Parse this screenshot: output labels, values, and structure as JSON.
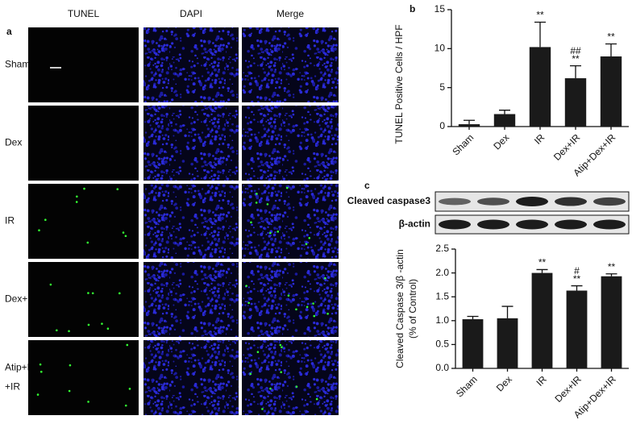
{
  "panel_a": {
    "label": "a",
    "columns": [
      "TUNEL",
      "DAPI",
      "Merge"
    ],
    "rows": [
      [
        "Sham"
      ],
      [
        "Dex"
      ],
      [
        "IR"
      ],
      [
        "Dex+IR"
      ],
      [
        "Atip+Dex",
        "+IR"
      ]
    ]
  },
  "chart_data": [
    {
      "type": "bar",
      "panel_label": "b",
      "ylabel": "TUNEL Positive Cells / HPF",
      "categories": [
        "Sham",
        "Dex",
        "IR",
        "Dex+IR",
        "Atip+Dex+IR"
      ],
      "values": [
        0.3,
        1.6,
        10.2,
        6.2,
        9.0
      ],
      "errors": [
        0.5,
        0.5,
        3.2,
        1.6,
        1.6
      ],
      "markers": [
        null,
        null,
        [
          "**"
        ],
        [
          "##",
          "**"
        ],
        [
          "**"
        ]
      ],
      "color": "#1a1a1a",
      "ylim": [
        0,
        15
      ],
      "yticks": [
        0,
        5,
        10,
        15
      ]
    },
    {
      "type": "bar",
      "panel_label": "c",
      "blot_labels": [
        "Cleaved caspase3",
        "β-actin"
      ],
      "ylabel": [
        "Cleaved Caspase 3/β -actin",
        "(% of Control)"
      ],
      "categories": [
        "Sham",
        "Dex",
        "IR",
        "Dex+IR",
        "Atip+Dex+IR"
      ],
      "values": [
        1.03,
        1.05,
        2.0,
        1.63,
        1.93
      ],
      "errors": [
        0.06,
        0.25,
        0.07,
        0.1,
        0.05
      ],
      "markers": [
        null,
        null,
        [
          "**"
        ],
        [
          "#",
          "**"
        ],
        [
          "**"
        ]
      ],
      "color": "#1a1a1a",
      "ylim": [
        0,
        2.5
      ],
      "yticks": [
        {
          "value": 0,
          "label": "0.0"
        },
        0.5,
        {
          "value": 1,
          "label": "1.0"
        },
        1.5,
        {
          "value": 2,
          "label": "2.0"
        },
        2.5
      ]
    }
  ]
}
